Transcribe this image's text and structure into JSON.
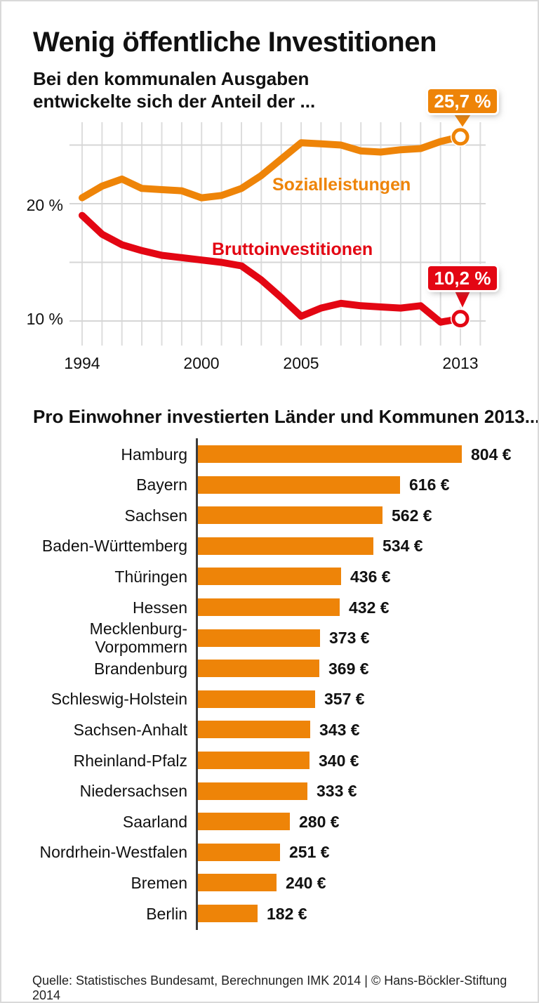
{
  "page": {
    "title": "Wenig öffentliche Investitionen",
    "subtitle": "Bei den kommunalen Ausgaben\nentwickelte sich der Anteil der ...",
    "source": "Quelle: Statistisches Bundesamt, Berechnungen IMK 2014 | © Hans-Böckler-Stiftung 2014"
  },
  "colors": {
    "orange": "#EE8408",
    "red": "#E30613",
    "grid": "#dddddd",
    "axis": "#3c3c3c",
    "text": "#111111",
    "background": "#ffffff"
  },
  "chart_data": [
    {
      "type": "line",
      "title": "",
      "x": [
        1994,
        1995,
        1996,
        1997,
        1998,
        1999,
        2000,
        2001,
        2002,
        2003,
        2004,
        2005,
        2006,
        2007,
        2008,
        2009,
        2010,
        2011,
        2012,
        2013
      ],
      "series": [
        {
          "name": "Sozialleistungen",
          "color": "#EE8408",
          "values": [
            20.5,
            21.5,
            22.1,
            21.3,
            21.2,
            21.1,
            20.5,
            20.7,
            21.3,
            22.4,
            23.8,
            25.2,
            25.1,
            25.0,
            24.5,
            24.4,
            24.6,
            24.7,
            25.3,
            25.7
          ],
          "end_callout": "25,7 %"
        },
        {
          "name": "Bruttoinvestitionen",
          "color": "#E30613",
          "values": [
            19.0,
            17.4,
            16.5,
            16.0,
            15.6,
            15.4,
            15.2,
            15.0,
            14.7,
            13.5,
            12.0,
            10.4,
            11.1,
            11.5,
            11.3,
            11.2,
            11.1,
            11.3,
            9.9,
            10.2
          ],
          "end_callout": "10,2 %"
        }
      ],
      "ylim": [
        8.2,
        27.2
      ],
      "grid": true,
      "gridlines_y": [
        25,
        20,
        15,
        10
      ],
      "yticks": [
        {
          "v": 20,
          "label": "20 %"
        },
        {
          "v": 10,
          "label": "10 %"
        }
      ],
      "xticks": [
        {
          "v": 1994,
          "label": "1994"
        },
        {
          "v": 2000,
          "label": "2000"
        },
        {
          "v": 2005,
          "label": "2005"
        },
        {
          "v": 2013,
          "label": "2013"
        }
      ]
    },
    {
      "type": "bar",
      "title": "Pro Einwohner investierten Länder und Kommunen 2013...",
      "categories": [
        "Hamburg",
        "Bayern",
        "Sachsen",
        "Baden-Württemberg",
        "Thüringen",
        "Hessen",
        "Mecklenburg-\nVorpommern",
        "Brandenburg",
        "Schleswig-Holstein",
        "Sachsen-Anhalt",
        "Rheinland-Pfalz",
        "Niedersachsen",
        "Saarland",
        "Nordrhein-Westfalen",
        "Bremen",
        "Berlin"
      ],
      "values": [
        804,
        616,
        562,
        534,
        436,
        432,
        373,
        369,
        357,
        343,
        340,
        333,
        280,
        251,
        240,
        182
      ],
      "value_suffix": " €",
      "xlabel": "",
      "ylabel": ""
    }
  ]
}
